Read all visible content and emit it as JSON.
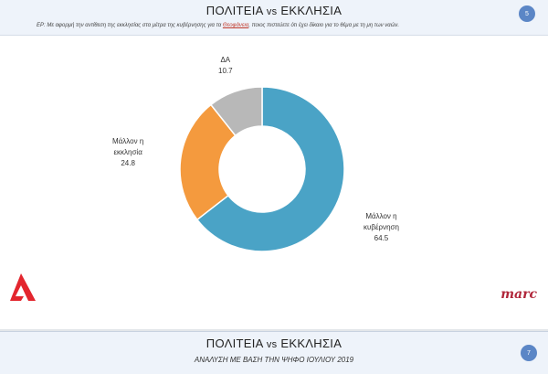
{
  "slide": {
    "title_pre": "ΠΟΛΙΤΕΙΑ ",
    "title_vs": "vs",
    "title_post": " ΕΚΚΛΗΣΙΑ",
    "question_pre": "ΕΡ: Με αφορμή την αντίθεση της εκκλησίας στα μέτρα της κυβέρνησης για τα ",
    "question_hl": "Θεοφάνεια",
    "question_post": ", ποιος πιστεύετε ότι έχει δίκαιο για το θέμα με τη μη των ναών.",
    "page_number": "5",
    "brand": "marc"
  },
  "chart_data": {
    "type": "pie",
    "donut": true,
    "title": "",
    "start_angle_deg": 0,
    "slices": [
      {
        "label_lines": [
          "Μάλλον η",
          "κυβέρνηση"
        ],
        "value": 64.5,
        "value_label": "64.5",
        "color": "#4aa3c6"
      },
      {
        "label_lines": [
          "Μάλλον η",
          "εκκλησία"
        ],
        "value": 24.8,
        "value_label": "24.8",
        "color": "#f49a3e"
      },
      {
        "label_lines": [
          "ΔΑ"
        ],
        "value": 10.7,
        "value_label": "10.7",
        "color": "#b8b8b8"
      }
    ]
  },
  "footer": {
    "title_pre": "ΠΟΛΙΤΕΙΑ ",
    "title_vs": "vs",
    "title_post": " ΕΚΚΛΗΣΙΑ",
    "subtitle": "ΑΝΑΛΥΣΗ ΜΕ ΒΑΣΗ ΤΗΝ ΨΗΦΟ ΙΟΥΛΙΟΥ 2019",
    "page_number": "7"
  },
  "colors": {
    "logo_red": "#e3262e",
    "brand_red": "#b0263a",
    "badge_blue": "#5b86c6"
  }
}
